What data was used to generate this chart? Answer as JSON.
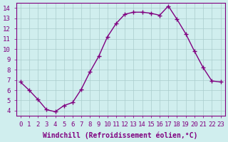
{
  "x": [
    0,
    1,
    2,
    3,
    4,
    5,
    6,
    7,
    8,
    9,
    10,
    11,
    12,
    13,
    14,
    15,
    16,
    17,
    18,
    19,
    20,
    21,
    22,
    23
  ],
  "y": [
    6.8,
    6.0,
    5.1,
    4.1,
    3.9,
    4.5,
    4.8,
    6.1,
    7.8,
    9.3,
    11.2,
    12.5,
    13.4,
    13.6,
    13.6,
    13.5,
    13.3,
    14.2,
    12.9,
    11.5,
    9.8,
    8.2,
    6.9,
    6.8
  ],
  "line_color": "#800080",
  "marker": "+",
  "marker_size": 5,
  "bg_color": "#d0eeee",
  "grid_color": "#aacccc",
  "xlabel": "Windchill (Refroidissement éolien,°C)",
  "xlim": [
    -0.5,
    23.5
  ],
  "ylim": [
    3.5,
    14.5
  ],
  "xticks": [
    0,
    1,
    2,
    3,
    4,
    5,
    6,
    7,
    8,
    9,
    10,
    11,
    12,
    13,
    14,
    15,
    16,
    17,
    18,
    19,
    20,
    21,
    22,
    23
  ],
  "yticks": [
    4,
    5,
    6,
    7,
    8,
    9,
    10,
    11,
    12,
    13,
    14
  ],
  "xlabel_fontsize": 7,
  "tick_fontsize": 6.5,
  "line_width": 1.0
}
